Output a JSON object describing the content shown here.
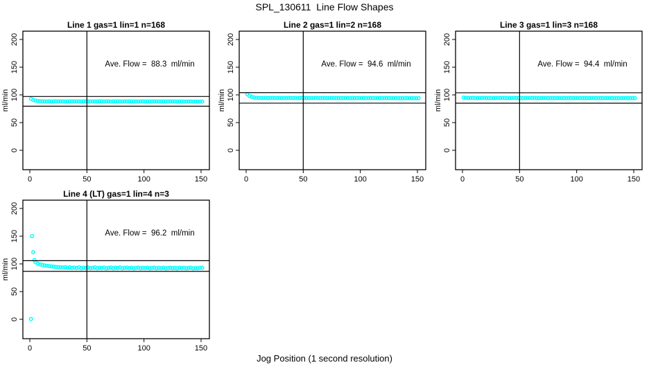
{
  "page": {
    "title": "SPL_130611  Line Flow Shapes",
    "xlabel": "Jog Position (1 second resolution)"
  },
  "chart_data": {
    "type": "scatter",
    "point_color": "#00FFFF",
    "axis_color": "#000000",
    "ylabel": "ml/min",
    "x_ticks": [
      0,
      50,
      100,
      150
    ],
    "y_ticks": [
      0,
      50,
      100,
      150,
      200
    ],
    "xlim": [
      -6,
      157
    ],
    "ylim": [
      -35,
      215
    ],
    "vline_x": 50,
    "grid": false,
    "legend": false,
    "panels": [
      {
        "id": "line1",
        "title": "Line 1 gas=1 lin=1 n=168",
        "annotation": "Ave. Flow =  88.3  ml/min",
        "ave_flow_ml_min": 88.3,
        "hline_upper": 97.1,
        "hline_lower": 79.5,
        "x_start": 1,
        "x_step": 2,
        "y": [
          93.0,
          90.8,
          89.6,
          89.0,
          88.7,
          88.5,
          88.2,
          88.4,
          88.6,
          88.1,
          88.3,
          88.5,
          88.2,
          88.4,
          88.3,
          88.1,
          88.4,
          88.2,
          88.5,
          88.3,
          88.2,
          88.4,
          88.1,
          88.3,
          88.5,
          88.2,
          88.3,
          88.1,
          88.4,
          88.2,
          88.5,
          88.3,
          88.2,
          88.4,
          88.3,
          88.1,
          88.3,
          88.4,
          88.2,
          88.3,
          88.1,
          88.4,
          88.2,
          88.3,
          88.2,
          88.0,
          88.3,
          88.1,
          88.2,
          88.4,
          88.1,
          88.3,
          88.0,
          88.2,
          88.3,
          88.1,
          88.2,
          88.0,
          88.3,
          88.1,
          88.2,
          88.3,
          88.0,
          88.2,
          88.1,
          88.0,
          88.2,
          87.9,
          88.1,
          88.0,
          88.2,
          87.9,
          88.1,
          88.0,
          87.9,
          88.0
        ]
      },
      {
        "id": "line2",
        "title": "Line 2 gas=1 lin=2 n=168",
        "annotation": "Ave. Flow =  94.6  ml/min",
        "ave_flow_ml_min": 94.6,
        "hline_upper": 104.1,
        "hline_lower": 85.1,
        "x_start": 1,
        "x_step": 2,
        "y": [
          101.0,
          98.0,
          96.3,
          95.3,
          94.8,
          94.6,
          94.3,
          94.5,
          94.7,
          94.2,
          94.4,
          94.6,
          94.3,
          94.5,
          94.4,
          94.2,
          94.5,
          94.3,
          94.6,
          94.4,
          94.3,
          94.5,
          94.2,
          94.4,
          94.6,
          94.3,
          94.4,
          94.2,
          94.5,
          94.3,
          94.6,
          94.4,
          94.3,
          94.5,
          94.4,
          94.2,
          94.4,
          94.5,
          94.3,
          94.4,
          94.2,
          94.5,
          94.3,
          94.4,
          94.3,
          94.1,
          94.4,
          94.2,
          94.3,
          94.5,
          94.2,
          94.4,
          94.1,
          94.3,
          94.4,
          94.2,
          94.3,
          94.1,
          94.4,
          94.2,
          94.3,
          94.4,
          94.1,
          94.3,
          94.2,
          94.1,
          94.3,
          94.0,
          94.2,
          94.1,
          94.3,
          94.0,
          94.2,
          94.1,
          94.0,
          94.2
        ]
      },
      {
        "id": "line3",
        "title": "Line 3 gas=1 lin=3 n=168",
        "annotation": "Ave. Flow =  94.4  ml/min",
        "ave_flow_ml_min": 94.4,
        "hline_upper": 103.8,
        "hline_lower": 85.0,
        "x_start": 1,
        "x_step": 2,
        "y": [
          95.2,
          94.8,
          94.5,
          94.3,
          94.6,
          94.4,
          94.2,
          94.5,
          94.3,
          94.6,
          94.4,
          94.3,
          94.5,
          94.2,
          94.4,
          94.6,
          94.3,
          94.5,
          94.4,
          94.2,
          94.5,
          94.3,
          94.6,
          94.4,
          94.3,
          94.5,
          94.2,
          94.4,
          94.5,
          94.3,
          94.4,
          94.6,
          94.2,
          94.4,
          94.3,
          94.5,
          94.4,
          94.2,
          94.5,
          94.3,
          94.4,
          94.3,
          94.5,
          94.2,
          94.4,
          94.3,
          94.5,
          94.4,
          94.2,
          94.4,
          94.3,
          94.5,
          94.3,
          94.4,
          94.2,
          94.4,
          94.3,
          94.5,
          94.2,
          94.4,
          94.3,
          94.4,
          94.2,
          94.3,
          94.4,
          94.2,
          94.3,
          94.1,
          94.4,
          94.2,
          94.3,
          94.2,
          94.4,
          94.1,
          94.3,
          94.2
        ]
      },
      {
        "id": "line4",
        "title": "Line 4 (LT) gas=1 lin=4 n=3",
        "annotation": "Ave. Flow =  96.2  ml/min",
        "ave_flow_ml_min": 96.2,
        "hline_upper": 105.8,
        "hline_lower": 86.6,
        "x_start": 5,
        "x_step": 2,
        "y": [
          103.0,
          100.5,
          99.0,
          98.0,
          97.2,
          96.5,
          96.0,
          95.4,
          95.0,
          94.5,
          94.2,
          93.8,
          93.5,
          93.9,
          93.2,
          93.6,
          92.8,
          93.4,
          92.5,
          93.8,
          92.2,
          93.1,
          92.7,
          93.5,
          92.3,
          92.9,
          93.6,
          92.1,
          93.0,
          92.6,
          93.3,
          91.9,
          92.8,
          93.4,
          92.2,
          93.0,
          92.5,
          93.7,
          92.0,
          92.9,
          93.2,
          92.4,
          93.0,
          91.8,
          92.7,
          93.3,
          92.1,
          92.8,
          92.4,
          93.1,
          91.9,
          92.6,
          93.2,
          92.0,
          92.8,
          92.3,
          93.0,
          91.8,
          92.5,
          93.1,
          92.2,
          92.7,
          91.9,
          92.9,
          92.4,
          93.0,
          92.0,
          92.6,
          93.2,
          91.8,
          92.5,
          92.1,
          92.8,
          93.0
        ],
        "outliers": [
          [
            1,
            0.5
          ],
          [
            2,
            150
          ],
          [
            3,
            121
          ],
          [
            4,
            107
          ]
        ]
      }
    ]
  }
}
